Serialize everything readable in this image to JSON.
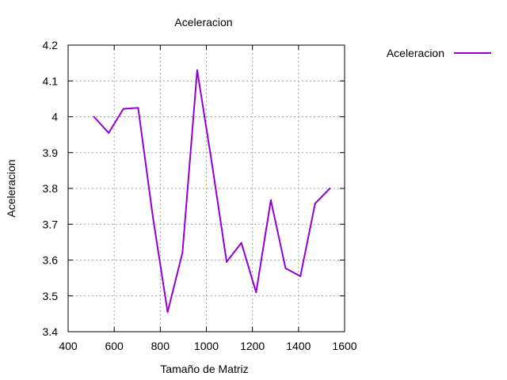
{
  "chart_data": {
    "type": "line",
    "title": "Aceleracion",
    "xlabel": "Tamaño de Matriz",
    "ylabel": "Aceleracion",
    "xlim": [
      400,
      1600
    ],
    "ylim": [
      3.4,
      4.2
    ],
    "xticks": [
      400,
      600,
      800,
      1000,
      1200,
      1400,
      1600
    ],
    "yticks": [
      3.4,
      3.5,
      3.6,
      3.7,
      3.8,
      3.9,
      4.0,
      4.1,
      4.2
    ],
    "xtick_labels": [
      "400",
      "600",
      "800",
      "1000",
      "1200",
      "1400",
      "1600"
    ],
    "ytick_labels": [
      "3.4",
      "3.5",
      "3.6",
      "3.7",
      "3.8",
      "3.9",
      "4",
      "4.1",
      "4.2"
    ],
    "grid": true,
    "legend_position": "outside-top-right",
    "series": [
      {
        "name": "Aceleracion",
        "color": "#9400d3",
        "x": [
          512,
          576,
          640,
          704,
          768,
          832,
          896,
          960,
          1024,
          1088,
          1152,
          1216,
          1280,
          1344,
          1408,
          1472,
          1536
        ],
        "y": [
          4.0,
          3.955,
          4.022,
          4.025,
          3.72,
          3.455,
          3.62,
          4.13,
          3.87,
          3.595,
          3.648,
          3.51,
          3.767,
          3.577,
          3.555,
          3.758,
          3.8
        ]
      }
    ]
  }
}
